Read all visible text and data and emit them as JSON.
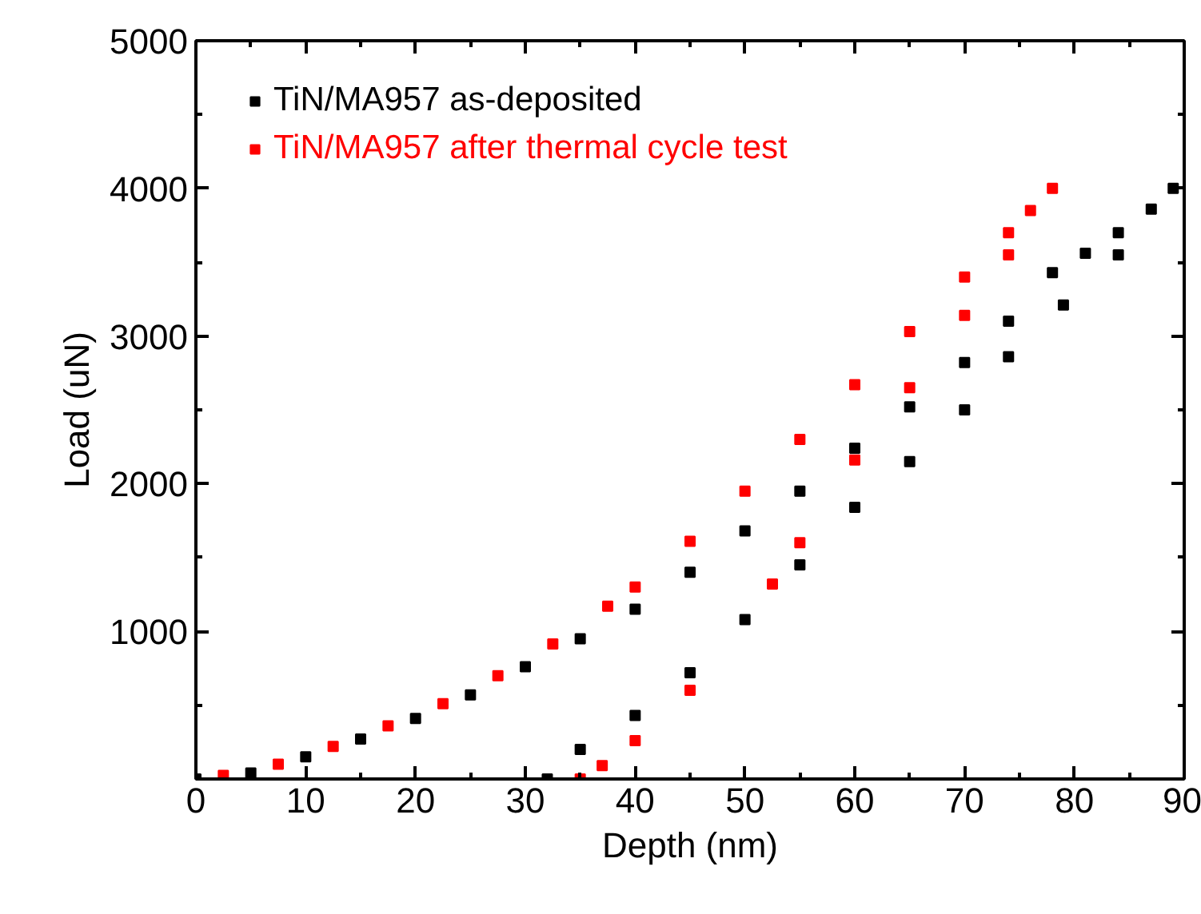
{
  "chart_data": {
    "type": "scatter",
    "xlabel": "Depth (nm)",
    "ylabel": "Load (uN)",
    "xlim": [
      0,
      90
    ],
    "ylim": [
      0,
      5000
    ],
    "xticks": [
      0,
      10,
      20,
      30,
      40,
      50,
      60,
      70,
      80,
      90
    ],
    "yticks": [
      1000,
      2000,
      3000,
      4000,
      5000
    ],
    "grid": false,
    "legend": "top left",
    "marker": "square",
    "series": [
      {
        "name": "TiN/MA957 as-deposited",
        "color": "#000000",
        "x": [
          0,
          5,
          10,
          15,
          20,
          25,
          30,
          35,
          40,
          45,
          50,
          55,
          60,
          65,
          70,
          74,
          78,
          81,
          84,
          87,
          89,
          84,
          79,
          74,
          70,
          65,
          60,
          55,
          50,
          45,
          40,
          35,
          32
        ],
        "values": [
          0,
          40,
          150,
          270,
          410,
          570,
          760,
          950,
          1150,
          1400,
          1680,
          1950,
          2240,
          2520,
          2820,
          3100,
          3430,
          3560,
          3700,
          3860,
          4000,
          3550,
          3210,
          2860,
          2500,
          2150,
          1840,
          1450,
          1080,
          720,
          430,
          200,
          0
        ]
      },
      {
        "name": "TiN/MA957 after thermal cycle test",
        "color": "#ff0000",
        "x": [
          2.5,
          7.5,
          12.5,
          17.5,
          22.5,
          27.5,
          32.5,
          37.5,
          40,
          45,
          50,
          55,
          60,
          65,
          70,
          74,
          76,
          78,
          74,
          70,
          65,
          60,
          55,
          52.5,
          45,
          40,
          37,
          35
        ],
        "values": [
          25,
          100,
          220,
          360,
          510,
          700,
          915,
          1170,
          1300,
          1610,
          1950,
          2300,
          2670,
          3030,
          3400,
          3700,
          3850,
          4000,
          3550,
          3140,
          2650,
          2160,
          1600,
          1320,
          600,
          260,
          90,
          0
        ]
      }
    ]
  }
}
